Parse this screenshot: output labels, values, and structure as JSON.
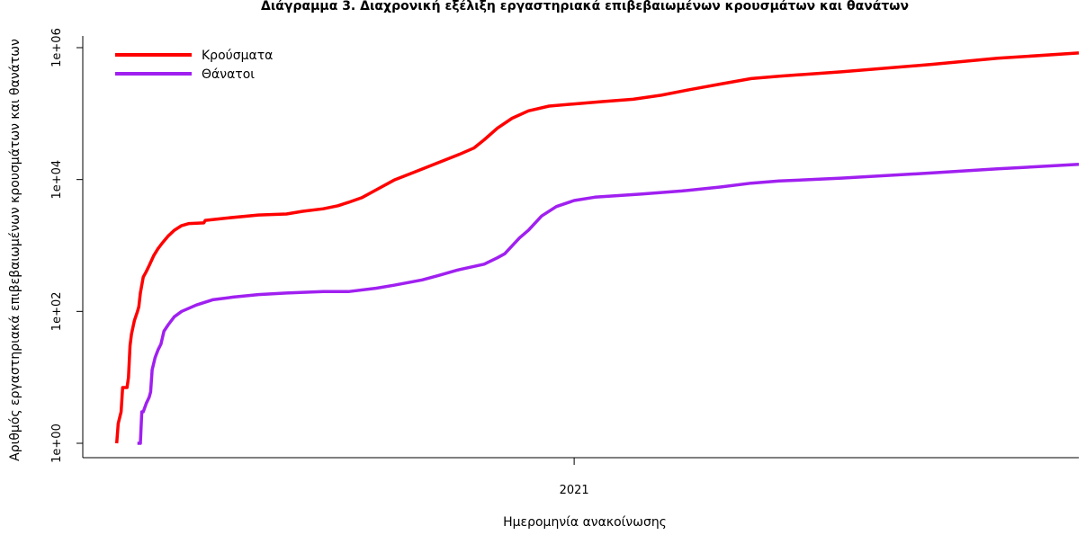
{
  "chart_data": {
    "type": "line",
    "title": "Διάγραμμα 3. Διαχρονική εξέλιξη εργαστηριακά επιβεβαιωμένων κρουσμάτων και θανάτων",
    "xlabel": "Ημερομηνία ανακοίνωσης",
    "ylabel": "Αριθμός εργαστηριακά επιβεβαιωμένων κρουσμάτων και θανάτων",
    "y_scale": "log",
    "ylim": [
      1,
      1000000
    ],
    "xlim": [
      "2020-02-03",
      "2021-12-09"
    ],
    "x_ticks": [
      {
        "date": "2021-01-01",
        "label": "2021"
      }
    ],
    "y_ticks": [
      {
        "value": 1,
        "label": "1e+00"
      },
      {
        "value": 100,
        "label": "1e+02"
      },
      {
        "value": 10000,
        "label": "1e+04"
      },
      {
        "value": 1000000,
        "label": "1e+06"
      }
    ],
    "grid": false,
    "legend_position": "top-left",
    "series": [
      {
        "name": "Κρούσματα",
        "color": "#ff0000",
        "points": [
          [
            "2020-02-26",
            1
          ],
          [
            "2020-02-27",
            2
          ],
          [
            "2020-02-29",
            3
          ],
          [
            "2020-03-01",
            7
          ],
          [
            "2020-03-04",
            7
          ],
          [
            "2020-03-05",
            10
          ],
          [
            "2020-03-06",
            30
          ],
          [
            "2020-03-07",
            45
          ],
          [
            "2020-03-09",
            73
          ],
          [
            "2020-03-11",
            99
          ],
          [
            "2020-03-12",
            118
          ],
          [
            "2020-03-13",
            190
          ],
          [
            "2020-03-15",
            331
          ],
          [
            "2020-03-17",
            400
          ],
          [
            "2020-03-19",
            495
          ],
          [
            "2020-03-22",
            695
          ],
          [
            "2020-03-25",
            892
          ],
          [
            "2020-03-28",
            1100
          ],
          [
            "2020-04-01",
            1400
          ],
          [
            "2020-04-05",
            1700
          ],
          [
            "2020-04-10",
            2000
          ],
          [
            "2020-04-15",
            2150
          ],
          [
            "2020-04-25",
            2200
          ],
          [
            "2020-04-26",
            2400
          ],
          [
            "2020-05-10",
            2600
          ],
          [
            "2020-06-01",
            2900
          ],
          [
            "2020-06-20",
            3000
          ],
          [
            "2020-07-01",
            3300
          ],
          [
            "2020-07-15",
            3600
          ],
          [
            "2020-07-25",
            4000
          ],
          [
            "2020-08-01",
            4500
          ],
          [
            "2020-08-10",
            5300
          ],
          [
            "2020-08-20",
            7000
          ],
          [
            "2020-09-01",
            9800
          ],
          [
            "2020-09-15",
            13000
          ],
          [
            "2020-10-01",
            18000
          ],
          [
            "2020-10-15",
            24000
          ],
          [
            "2020-10-25",
            30000
          ],
          [
            "2020-11-01",
            40000
          ],
          [
            "2020-11-10",
            60000
          ],
          [
            "2020-11-20",
            85000
          ],
          [
            "2020-12-01",
            110000
          ],
          [
            "2020-12-15",
            130000
          ],
          [
            "2021-01-01",
            140000
          ],
          [
            "2021-01-20",
            152000
          ],
          [
            "2021-02-10",
            165000
          ],
          [
            "2021-03-01",
            190000
          ],
          [
            "2021-03-20",
            230000
          ],
          [
            "2021-04-10",
            280000
          ],
          [
            "2021-05-01",
            340000
          ],
          [
            "2021-05-20",
            370000
          ],
          [
            "2021-07-01",
            430000
          ],
          [
            "2021-09-01",
            560000
          ],
          [
            "2021-10-15",
            690000
          ],
          [
            "2021-12-09",
            830000
          ]
        ]
      },
      {
        "name": "Θάνατοι",
        "color": "#a020f0",
        "points": [
          [
            "2020-03-11",
            1
          ],
          [
            "2020-03-13",
            1
          ],
          [
            "2020-03-14",
            3
          ],
          [
            "2020-03-15",
            3
          ],
          [
            "2020-03-17",
            4
          ],
          [
            "2020-03-19",
            5
          ],
          [
            "2020-03-20",
            6
          ],
          [
            "2020-03-21",
            13
          ],
          [
            "2020-03-23",
            20
          ],
          [
            "2020-03-25",
            26
          ],
          [
            "2020-03-27",
            32
          ],
          [
            "2020-03-29",
            50
          ],
          [
            "2020-04-01",
            63
          ],
          [
            "2020-04-05",
            83
          ],
          [
            "2020-04-10",
            100
          ],
          [
            "2020-04-20",
            125
          ],
          [
            "2020-05-01",
            150
          ],
          [
            "2020-05-15",
            165
          ],
          [
            "2020-06-01",
            180
          ],
          [
            "2020-06-20",
            190
          ],
          [
            "2020-07-15",
            200
          ],
          [
            "2020-08-01",
            200
          ],
          [
            "2020-08-20",
            225
          ],
          [
            "2020-09-01",
            250
          ],
          [
            "2020-09-20",
            300
          ],
          [
            "2020-10-01",
            350
          ],
          [
            "2020-10-15",
            430
          ],
          [
            "2020-11-01",
            520
          ],
          [
            "2020-11-10",
            650
          ],
          [
            "2020-11-15",
            750
          ],
          [
            "2020-11-25",
            1300
          ],
          [
            "2020-12-01",
            1700
          ],
          [
            "2020-12-10",
            2800
          ],
          [
            "2020-12-20",
            3900
          ],
          [
            "2021-01-01",
            4800
          ],
          [
            "2021-01-15",
            5400
          ],
          [
            "2021-02-15",
            6000
          ],
          [
            "2021-03-15",
            6700
          ],
          [
            "2021-04-10",
            7700
          ],
          [
            "2021-05-01",
            8800
          ],
          [
            "2021-05-20",
            9500
          ],
          [
            "2021-07-01",
            10500
          ],
          [
            "2021-09-01",
            12600
          ],
          [
            "2021-10-15",
            14500
          ],
          [
            "2021-12-09",
            17000
          ]
        ]
      }
    ]
  }
}
